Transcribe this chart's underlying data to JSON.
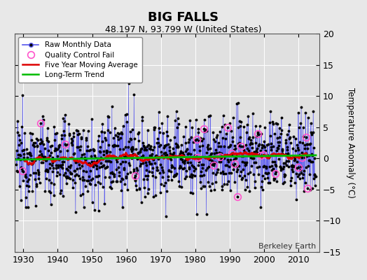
{
  "title": "BIG FALLS",
  "subtitle": "48.197 N, 93.799 W (United States)",
  "ylabel": "Temperature Anomaly (°C)",
  "credit": "Berkeley Earth",
  "xlim": [
    1927.5,
    2016
  ],
  "ylim": [
    -15,
    20
  ],
  "yticks": [
    -15,
    -10,
    -5,
    0,
    5,
    10,
    15,
    20
  ],
  "xticks": [
    1930,
    1940,
    1950,
    1960,
    1970,
    1980,
    1990,
    2000,
    2010
  ],
  "bg_color": "#e8e8e8",
  "plot_bg_color": "#e0e0e0",
  "raw_line_color": "#5555ee",
  "raw_marker_color": "#000000",
  "qc_fail_color": "#ff55cc",
  "moving_avg_color": "#dd0000",
  "trend_color": "#00bb00",
  "seed": 12345,
  "noise_std": 3.2,
  "start_year": 1928,
  "end_year": 2015
}
